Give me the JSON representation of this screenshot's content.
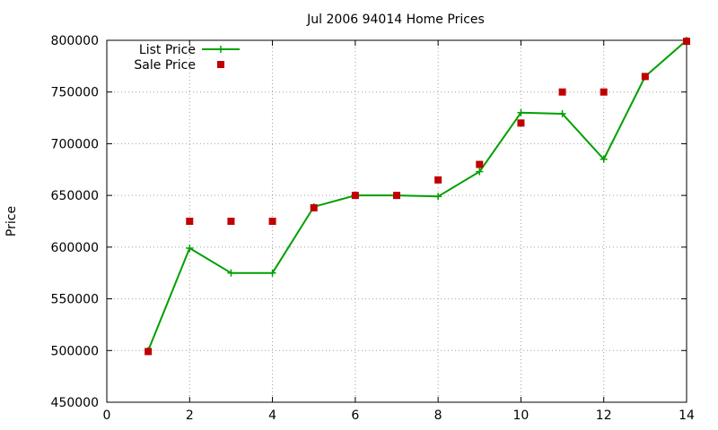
{
  "chart_data": {
    "type": "line",
    "title": "Jul 2006 94014 Home Prices",
    "xlabel": "",
    "ylabel": "Price",
    "xlim": [
      0,
      14
    ],
    "ylim": [
      450000,
      800000
    ],
    "xticks": [
      0,
      2,
      4,
      6,
      8,
      10,
      12,
      14
    ],
    "yticks": [
      450000,
      500000,
      550000,
      600000,
      650000,
      700000,
      750000,
      800000
    ],
    "grid": true,
    "legend_position": "top-left",
    "series": [
      {
        "name": "List Price",
        "style": "line+cross",
        "color": "#00a000",
        "points": [
          [
            1,
            500000
          ],
          [
            2,
            599000
          ],
          [
            3,
            575000
          ],
          [
            4,
            575000
          ],
          [
            5,
            639000
          ],
          [
            6,
            650000
          ],
          [
            7,
            650000
          ],
          [
            8,
            649000
          ],
          [
            9,
            673000
          ],
          [
            10,
            730000
          ],
          [
            11,
            729000
          ],
          [
            12,
            685000
          ],
          [
            13,
            765000
          ],
          [
            14,
            800000
          ]
        ]
      },
      {
        "name": "Sale Price",
        "style": "square-marker",
        "color": "#c00000",
        "points": [
          [
            1,
            499000
          ],
          [
            2,
            625000
          ],
          [
            3,
            625000
          ],
          [
            4,
            625000
          ],
          [
            5,
            638000
          ],
          [
            6,
            650000
          ],
          [
            7,
            650000
          ],
          [
            8,
            665000
          ],
          [
            9,
            680000
          ],
          [
            10,
            720000
          ],
          [
            11,
            750000
          ],
          [
            12,
            750000
          ],
          [
            13,
            765000
          ],
          [
            14,
            799000
          ]
        ]
      }
    ]
  }
}
